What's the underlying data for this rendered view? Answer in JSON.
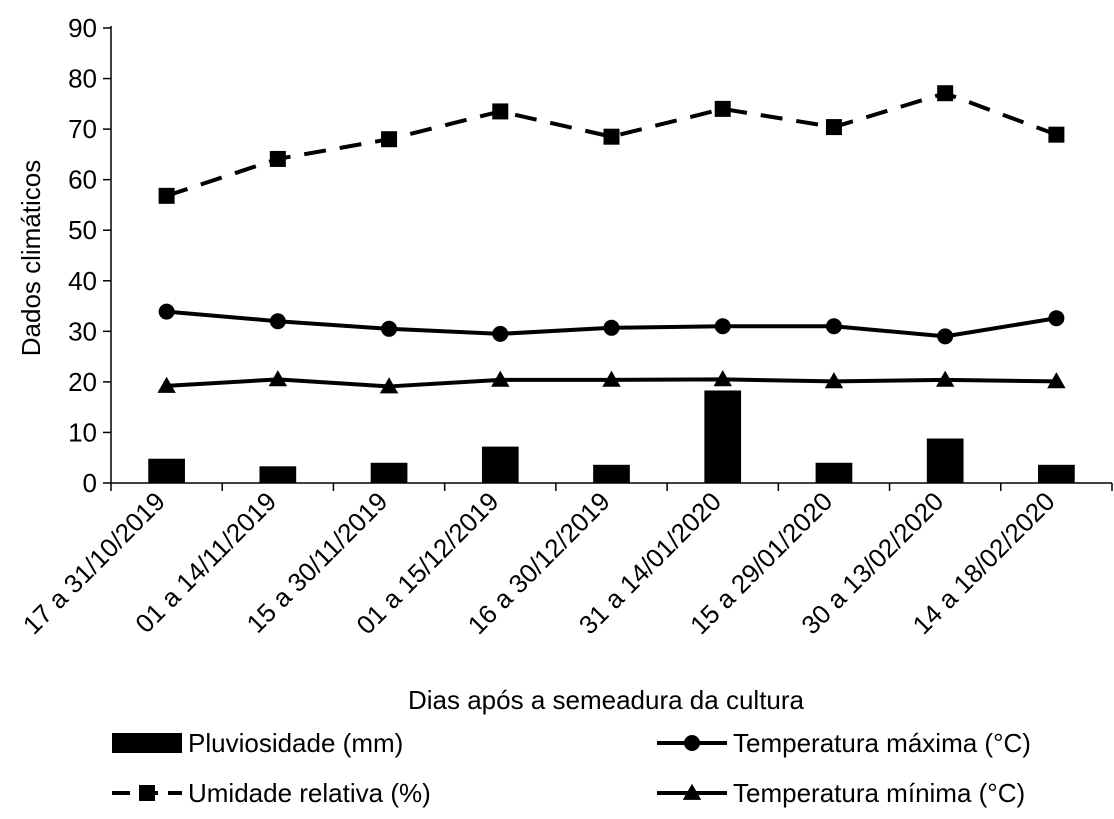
{
  "chart_data": {
    "type": "bar",
    "title": "",
    "xlabel": "Dias após a semeadura da cultura",
    "ylabel": "Dados climáticos",
    "ylim": [
      0,
      90
    ],
    "yticks": [
      0,
      10,
      20,
      30,
      40,
      50,
      60,
      70,
      80,
      90
    ],
    "grid": false,
    "legend_position": "bottom",
    "categories": [
      "17 a 31/10/2019",
      "01 a 14/11/2019",
      "15 a 30/11/2019",
      "01 a 15/12/2019",
      "16 a 30/12/2019",
      "31 a 14/01/2020",
      "15 a 29/01/2020",
      "30 a 13/02/2020",
      "14 a 18/02/2020"
    ],
    "series": [
      {
        "name": "Pluviosidade (mm)",
        "kind": "bar",
        "color": "#000000",
        "values": [
          4.8,
          3.3,
          4.0,
          7.2,
          3.6,
          18.3,
          4.0,
          8.8,
          3.6
        ]
      },
      {
        "name": "Temperatura máxima (°C)",
        "kind": "line",
        "marker": "circle",
        "dash": "solid",
        "color": "#000000",
        "values": [
          33.9,
          32.0,
          30.5,
          29.5,
          30.7,
          31.0,
          31.0,
          29.0,
          32.6
        ]
      },
      {
        "name": "Umidade relativa (%)",
        "kind": "line",
        "marker": "square",
        "dash": "dashed",
        "color": "#000000",
        "values": [
          56.8,
          64.1,
          68.0,
          73.5,
          68.5,
          74.0,
          70.4,
          77.1,
          68.9
        ]
      },
      {
        "name": "Temperatura mínima (°C)",
        "kind": "line",
        "marker": "triangle",
        "dash": "solid",
        "color": "#000000",
        "values": [
          19.2,
          20.5,
          19.1,
          20.4,
          20.4,
          20.5,
          20.1,
          20.4,
          20.1
        ]
      }
    ]
  }
}
